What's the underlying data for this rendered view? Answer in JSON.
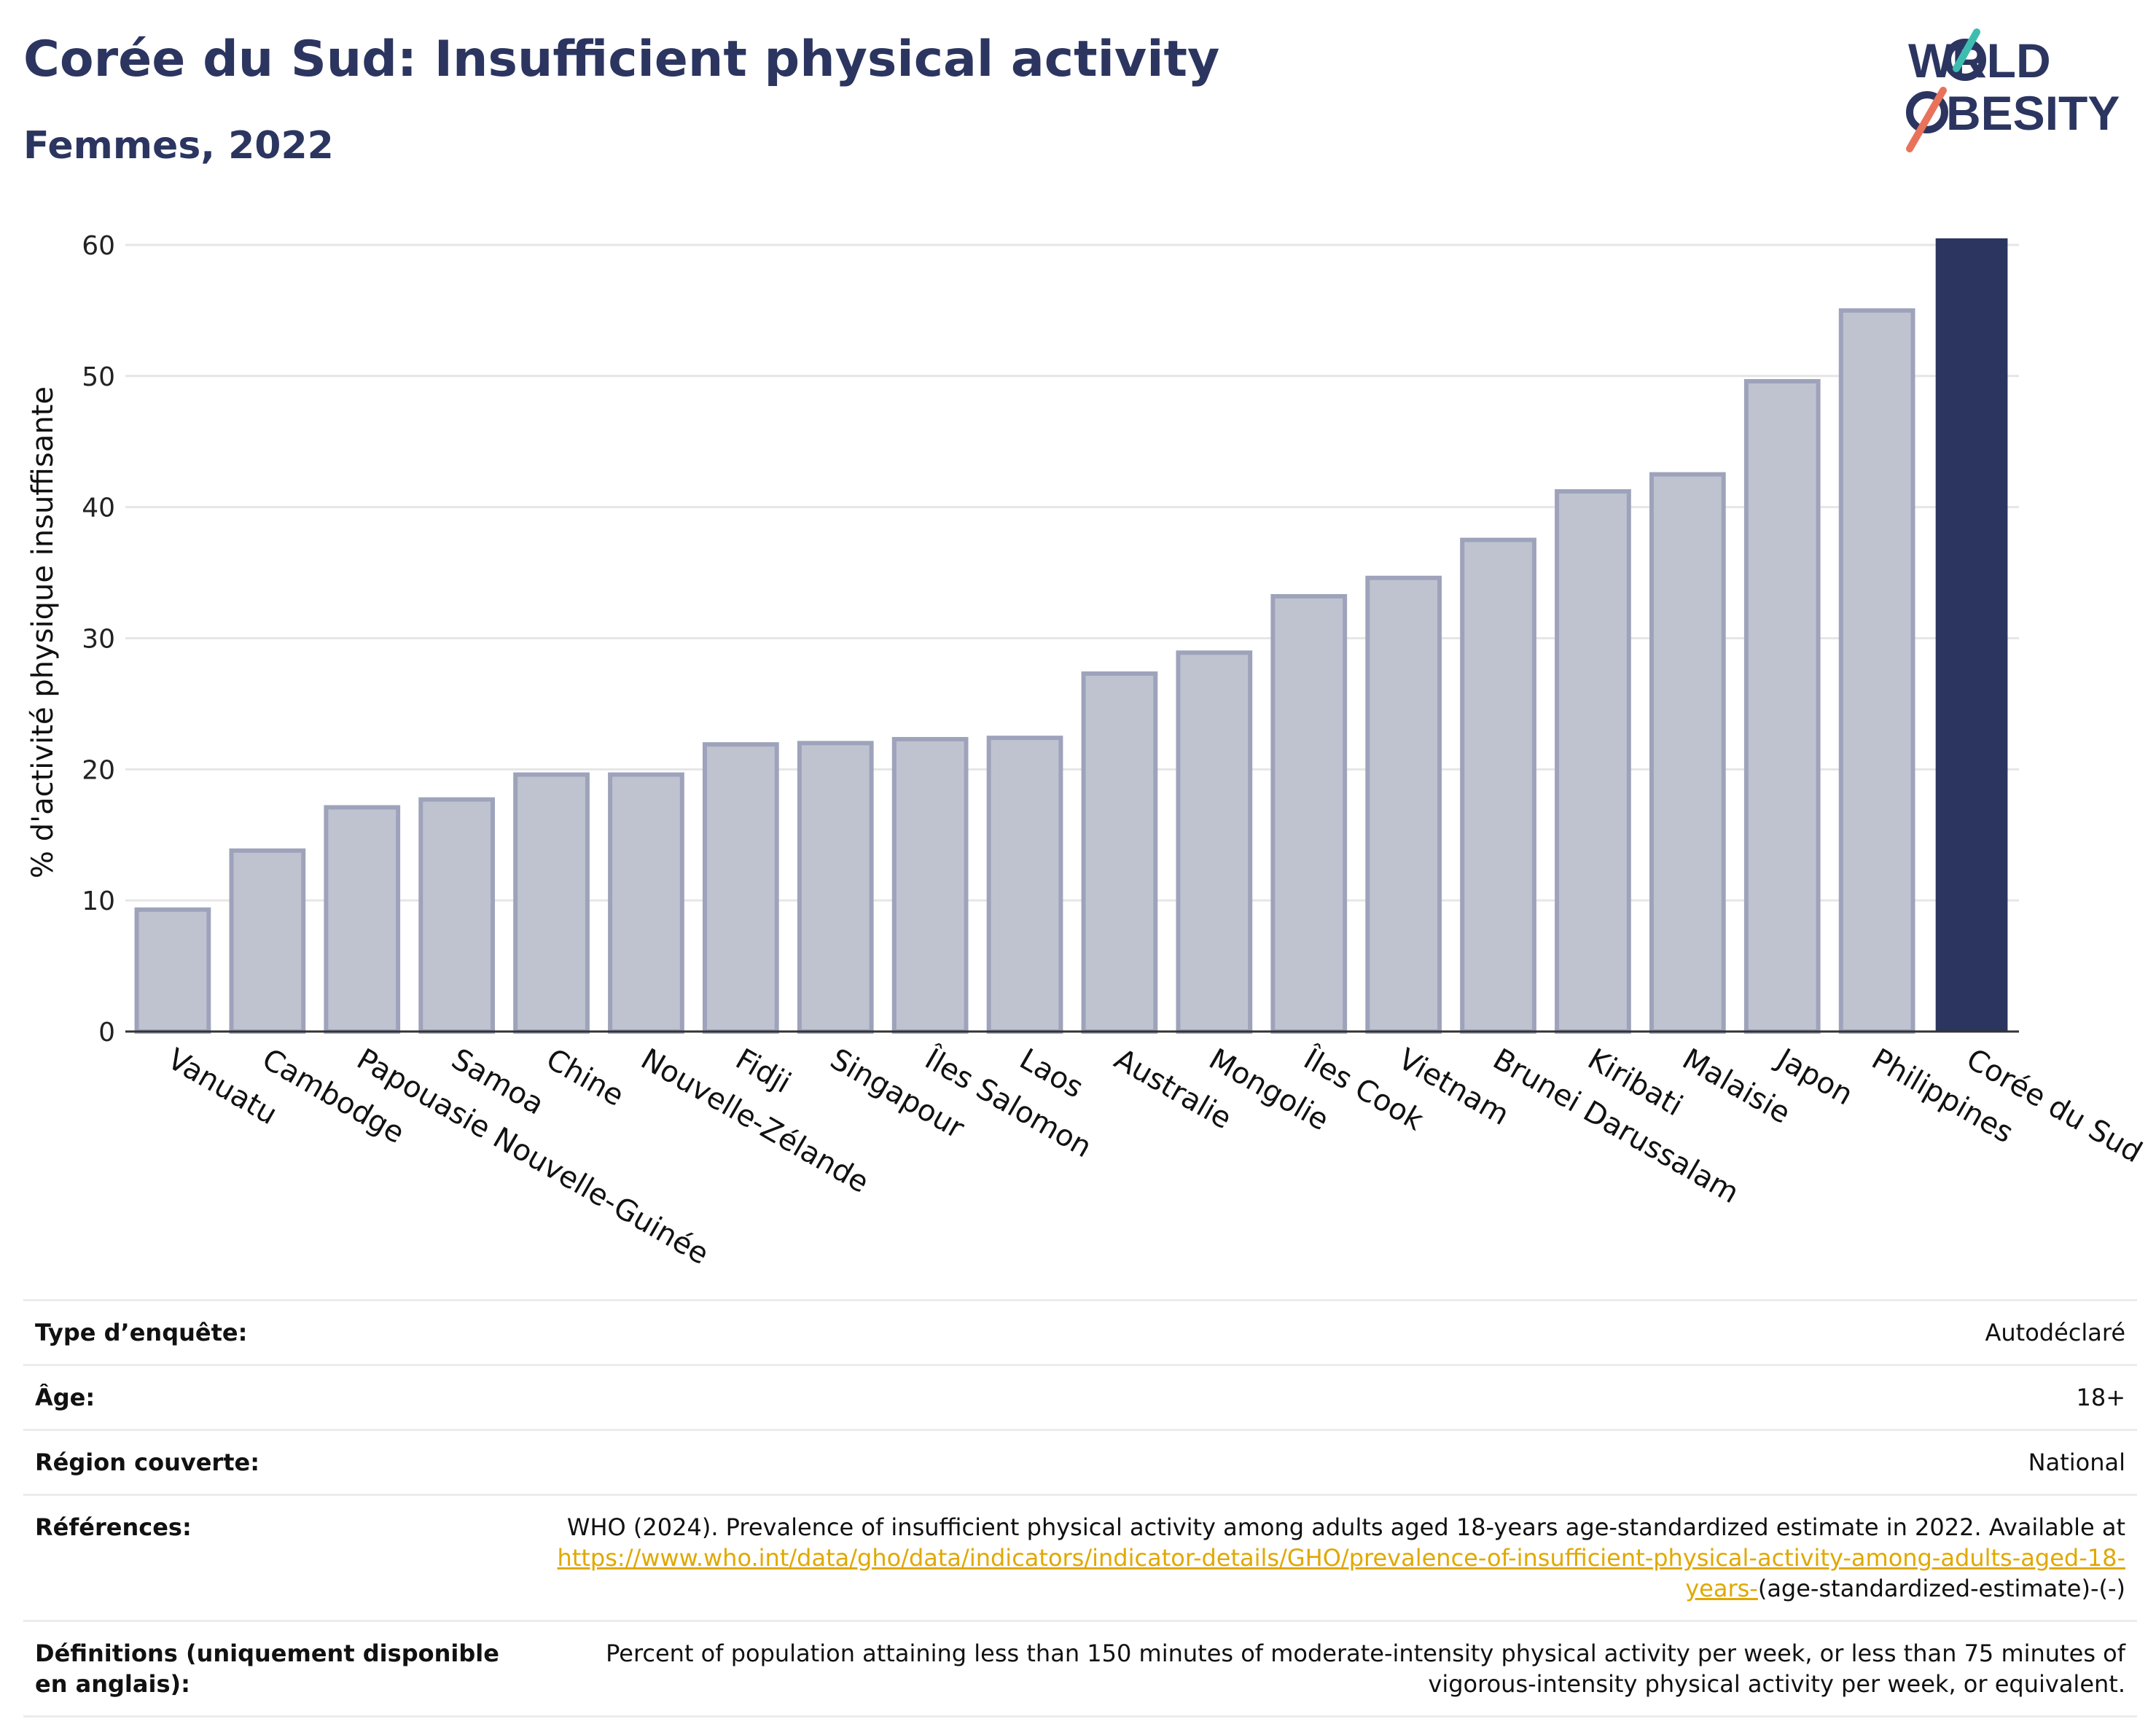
{
  "header": {
    "title": "Corée du Sud: Insufficient physical activity",
    "subtitle": "Femmes, 2022"
  },
  "logo": {
    "line1": "WORLD",
    "line2": "OBESITY",
    "colors": {
      "navy": "#2b3560",
      "coral": "#e8735a",
      "teal": "#3dbdb0"
    }
  },
  "colors": {
    "bar_default_fill": "#bfc3d0",
    "bar_default_stroke": "#9ea3bb",
    "bar_highlight": "#2b3560",
    "grid": "#e6e6e6",
    "link": "#e0a800"
  },
  "chart_data": {
    "type": "bar",
    "title": "Corée du Sud: Insufficient physical activity",
    "subtitle": "Femmes, 2022",
    "xlabel": "",
    "ylabel": "% d'activité physique insuffisante",
    "ylim": [
      0,
      62
    ],
    "yticks": [
      0,
      10,
      20,
      30,
      40,
      50,
      60
    ],
    "grid": true,
    "highlight": "Corée du Sud",
    "categories": [
      "Vanuatu",
      "Cambodge",
      "Papouasie Nouvelle-Guinée",
      "Samoa",
      "Chine",
      "Nouvelle-Zélande",
      "Fidji",
      "Singapour",
      "Îles Salomon",
      "Laos",
      "Australie",
      "Mongolie",
      "Îles Cook",
      "Vietnam",
      "Brunei Darussalam",
      "Kiribati",
      "Malaisie",
      "Japon",
      "Philippines",
      "Corée du Sud"
    ],
    "values": [
      9.3,
      13.8,
      17.1,
      17.7,
      19.6,
      19.6,
      21.9,
      22.0,
      22.3,
      22.4,
      27.3,
      28.9,
      33.2,
      34.6,
      37.5,
      41.2,
      42.5,
      49.6,
      55.0,
      60.5
    ]
  },
  "meta": {
    "rows": [
      {
        "key": "Type d’enquête:",
        "value": "Autodéclaré"
      },
      {
        "key": "Âge:",
        "value": "18+"
      },
      {
        "key": "Région couverte:",
        "value": "National"
      },
      {
        "key": "Références:",
        "value_pre": "WHO (2024). Prevalence of insufficient physical activity among adults aged 18-years age-standardized estimate in 2022. Available at",
        "link": "https://www.who.int/data/gho/data/indicators/indicator-details/GHO/prevalence-of-insufficient-physical-activity-among-adults-aged-18-years-",
        "value_post": "(age-standardized-estimate)-(-)"
      },
      {
        "key": "Définitions (uniquement disponible en anglais):",
        "value": "Percent of population attaining less than 150 minutes of moderate-intensity physical activity per week, or less than 75 minutes of vigorous-intensity physical activity per week, or equivalent."
      }
    ]
  }
}
